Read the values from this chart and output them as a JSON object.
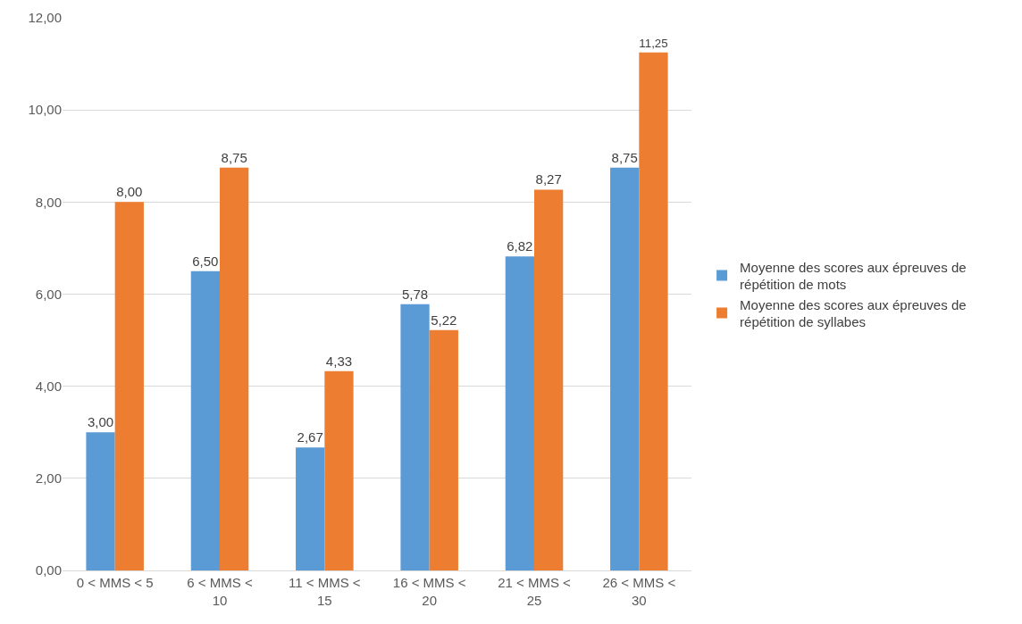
{
  "chart_data": {
    "type": "bar",
    "categories": [
      "0 < MMS < 5",
      "6 < MMS < 10",
      "11 < MMS < 15",
      "16 < MMS < 20",
      "21 < MMS < 25",
      "26 < MMS < 30"
    ],
    "series": [
      {
        "name": "Moyenne des scores aux épreuves de répétition de mots",
        "color": "#5b9bd5",
        "values": [
          3.0,
          6.5,
          2.67,
          5.78,
          6.82,
          8.75
        ],
        "value_labels": [
          "3,00",
          "6,50",
          "2,67",
          "5,78",
          "6,82",
          "8,75"
        ]
      },
      {
        "name": "Moyenne des scores aux épreuves de répétition de syllabes",
        "color": "#ed7d31",
        "values": [
          8.0,
          8.75,
          4.33,
          5.22,
          8.27,
          11.25
        ],
        "value_labels": [
          "8,00",
          "8,75",
          "4,33",
          "5,22",
          "8,27",
          "11,25"
        ]
      }
    ],
    "ylim": [
      0,
      12
    ],
    "yticks": [
      {
        "value": 0,
        "label": "0,00"
      },
      {
        "value": 2,
        "label": "2,00"
      },
      {
        "value": 4,
        "label": "4,00"
      },
      {
        "value": 6,
        "label": "6,00"
      },
      {
        "value": 8,
        "label": "8,00"
      },
      {
        "value": 10,
        "label": "10,00"
      },
      {
        "value": 12,
        "label": "12,00"
      }
    ],
    "grid": "y",
    "legend": "right"
  }
}
